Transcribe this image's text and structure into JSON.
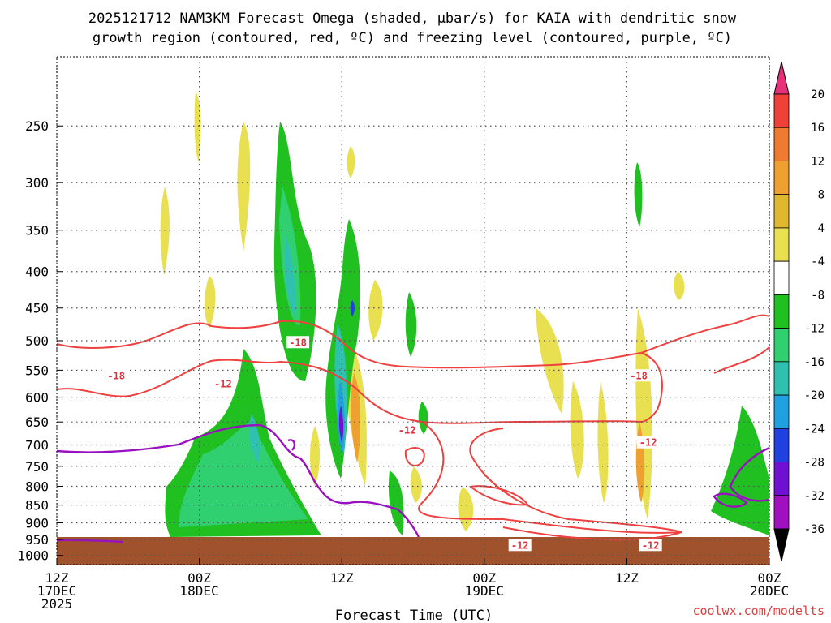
{
  "chart_data": {
    "type": "contour-crosssection",
    "title_line1": "2025121712 NAM3KM Forecast Omega (shaded, μbar/s) for KAIA with dendritic snow",
    "title_line2": "growth region (contoured, red, ºC) and freezing level (contoured, purple, ºC)",
    "xlabel": "Forecast Time (UTC)",
    "credit": "coolwx.com/modelts",
    "x_range_hours": [
      0,
      60
    ],
    "x_ticks": [
      {
        "hour": 0,
        "lines": [
          "12Z",
          "17DEC",
          "2025"
        ]
      },
      {
        "hour": 12,
        "lines": [
          "00Z",
          "18DEC"
        ]
      },
      {
        "hour": 24,
        "lines": [
          "12Z"
        ]
      },
      {
        "hour": 36,
        "lines": [
          "00Z",
          "19DEC"
        ]
      },
      {
        "hour": 48,
        "lines": [
          "12Z"
        ]
      },
      {
        "hour": 60,
        "lines": [
          "00Z",
          "20DEC"
        ]
      }
    ],
    "y_range_hpa": [
      1030,
      200
    ],
    "y_ticks": [
      250,
      300,
      350,
      400,
      450,
      500,
      550,
      600,
      650,
      700,
      750,
      800,
      850,
      900,
      950,
      1000
    ],
    "colorbar": {
      "labels": [
        "20",
        "16",
        "12",
        "8",
        "4",
        "-4",
        "-8",
        "-12",
        "-16",
        "-20",
        "-24",
        "-28",
        "-32",
        "-36"
      ],
      "colors": [
        "#e8307a",
        "#f0403a",
        "#f07a30",
        "#f0a030",
        "#e0b830",
        "#e8e050",
        "#ffffff",
        "#20c020",
        "#30d070",
        "#30c0b0",
        "#20a0e0",
        "#2040e0",
        "#7010d0",
        "#a010c0",
        "#a0a0a0",
        "#000000"
      ]
    },
    "contour_labels": [
      {
        "text": "-18",
        "hour": 5.0,
        "p": 560
      },
      {
        "text": "-18",
        "hour": 20.3,
        "p": 503
      },
      {
        "text": "-18",
        "hour": 49.0,
        "p": 560
      },
      {
        "text": "-12",
        "hour": 14.0,
        "p": 575
      },
      {
        "text": "-12",
        "hour": 29.5,
        "p": 668
      },
      {
        "text": "-12",
        "hour": 49.8,
        "p": 695
      },
      {
        "text": "-12",
        "hour": 39.0,
        "p": 968
      },
      {
        "text": "-12",
        "hour": 50.0,
        "p": 968
      }
    ],
    "omega_features": [
      {
        "name": "upward-core-19z",
        "hour": 19.5,
        "top": 260,
        "bottom": 560,
        "min_value": -16
      },
      {
        "name": "upward-core-24z",
        "hour": 24.0,
        "top": 380,
        "bottom": 780,
        "min_value": -28
      },
      {
        "name": "upward-low-level-18dec",
        "hour": 16.0,
        "top": 600,
        "bottom": 960,
        "min_value": -16
      },
      {
        "name": "upward-low-level-20dec",
        "hour": 59.0,
        "top": 680,
        "bottom": 960,
        "min_value": -12
      },
      {
        "name": "downward-max-24z",
        "hour": 25.2,
        "top": 560,
        "bottom": 780,
        "max_value": 16
      },
      {
        "name": "downward-max-49z",
        "hour": 49.0,
        "top": 700,
        "bottom": 880,
        "max_value": 12
      }
    ]
  }
}
